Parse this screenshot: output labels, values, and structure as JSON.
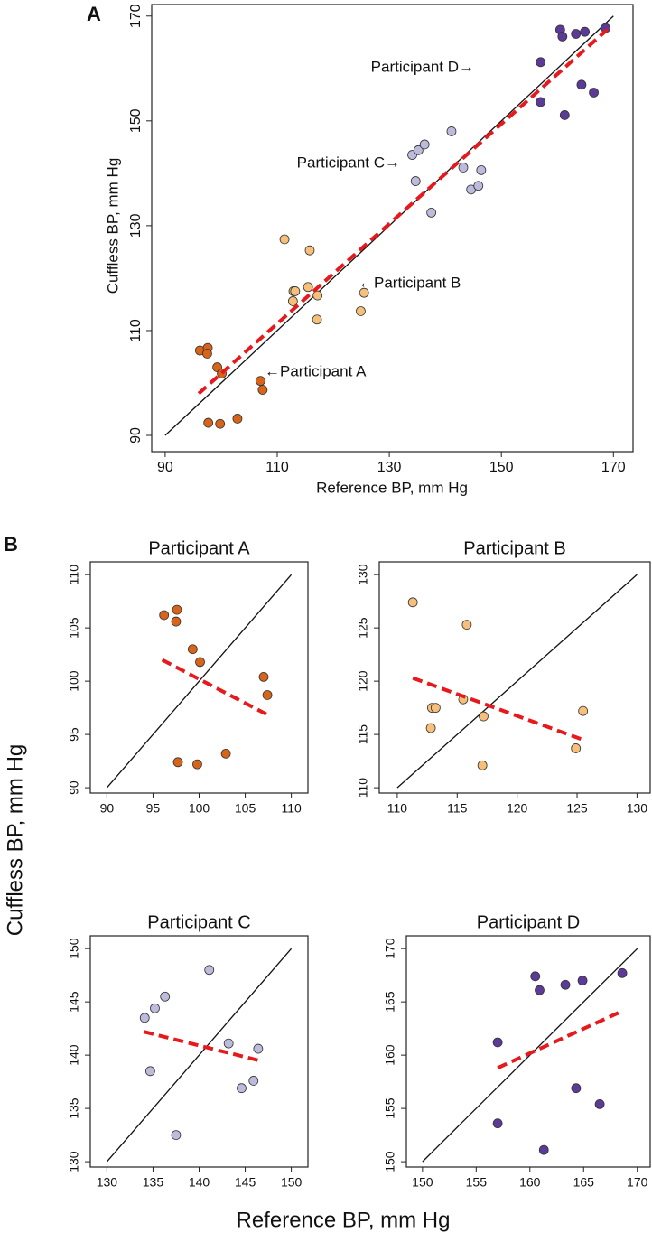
{
  "panel_b": {
    "label": "B",
    "x_label": "Reference BP, mm Hg",
    "y_label": "Cuffless BP, mm Hg"
  },
  "chart_data": [
    {
      "type": "scatter",
      "panel": "A",
      "x_label": "Reference BP, mm Hg",
      "y_label": "Cuffless BP, mm Hg",
      "xlim": [
        87.6,
        173.5
      ],
      "ylim": [
        86.9,
        172.2
      ],
      "xticks": [
        90,
        110,
        130,
        150,
        170
      ],
      "yticks": [
        90,
        110,
        130,
        150,
        170
      ],
      "annotations": [
        "Participant D→",
        "Participant C→",
        "←Participant B",
        "←Participant A"
      ],
      "identity": {
        "x": [
          90,
          170
        ],
        "y": [
          90,
          170
        ]
      },
      "fit": {
        "x": [
          96,
          169
        ],
        "y": [
          98,
          167.5
        ],
        "color": "#e8191c"
      },
      "series": [
        {
          "color": "#d8641a",
          "x": [
            96.2,
            97.6,
            97.5,
            99.3,
            100.1,
            107,
            107.4,
            97.7,
            99.8,
            102.9
          ],
          "values": [
            106.2,
            106.7,
            105.6,
            103,
            101.8,
            100.4,
            98.7,
            92.4,
            92.2,
            93.2
          ]
        },
        {
          "color": "#f6c07a",
          "x": [
            111.3,
            115.8,
            112.9,
            113.2,
            112.8,
            115.5,
            117.2,
            117.1,
            124.9,
            125.5
          ],
          "values": [
            127.4,
            125.3,
            117.5,
            117.5,
            115.6,
            118.3,
            116.7,
            112.1,
            113.7,
            117.2
          ]
        },
        {
          "color": "#bdbbdc",
          "x": [
            134.1,
            135.2,
            136.3,
            141.1,
            134.7,
            137.5,
            143.2,
            146.4,
            144.6,
            145.9
          ],
          "values": [
            143.5,
            144.4,
            145.5,
            148,
            138.5,
            132.5,
            141.1,
            140.6,
            136.9,
            137.6
          ]
        },
        {
          "color": "#5b3a98",
          "x": [
            160.5,
            160.9,
            163.3,
            164.9,
            168.6,
            157,
            157,
            164.3,
            166.5,
            161.3
          ],
          "values": [
            167.4,
            166.1,
            166.6,
            167,
            167.7,
            161.2,
            153.6,
            156.9,
            155.4,
            151.1
          ]
        }
      ]
    },
    {
      "type": "scatter",
      "title": "Participant A",
      "xlim": [
        88.2,
        111.8
      ],
      "ylim": [
        89.5,
        111.2
      ],
      "xticks": [
        90,
        95,
        100,
        105,
        110
      ],
      "yticks": [
        90,
        95,
        100,
        105,
        110
      ],
      "identity": {
        "x": [
          90,
          110
        ],
        "y": [
          90,
          110
        ]
      },
      "fit": {
        "x": [
          96,
          107.3
        ],
        "y": [
          102,
          96.9
        ],
        "color": "#e8191c"
      },
      "series": [
        {
          "color": "#d8641a",
          "x": [
            96.2,
            97.6,
            97.5,
            99.3,
            100.1,
            107,
            107.4,
            97.7,
            99.8,
            102.9
          ],
          "values": [
            106.2,
            106.7,
            105.6,
            103,
            101.8,
            100.4,
            98.7,
            92.4,
            92.2,
            93.2
          ]
        }
      ]
    },
    {
      "type": "scatter",
      "title": "Participant B",
      "xlim": [
        108.5,
        131.1
      ],
      "ylim": [
        109.5,
        131.2
      ],
      "xticks": [
        110,
        115,
        120,
        125,
        130
      ],
      "yticks": [
        110,
        115,
        120,
        125,
        130
      ],
      "identity": {
        "x": [
          110,
          130
        ],
        "y": [
          110,
          130
        ]
      },
      "fit": {
        "x": [
          111.3,
          125.5
        ],
        "y": [
          120.3,
          114.5
        ],
        "color": "#e8191c"
      },
      "series": [
        {
          "color": "#f6c07a",
          "x": [
            111.3,
            115.8,
            112.9,
            113.2,
            112.8,
            115.5,
            117.2,
            117.1,
            124.9,
            125.5
          ],
          "values": [
            127.4,
            125.3,
            117.5,
            117.5,
            115.6,
            118.3,
            116.7,
            112.1,
            113.7,
            117.2
          ]
        }
      ]
    },
    {
      "type": "scatter",
      "title": "Participant C",
      "xlim": [
        128.2,
        151.8
      ],
      "ylim": [
        129.5,
        151.2
      ],
      "xticks": [
        130,
        135,
        140,
        145,
        150
      ],
      "yticks": [
        130,
        135,
        140,
        145,
        150
      ],
      "identity": {
        "x": [
          130,
          150
        ],
        "y": [
          130,
          150
        ]
      },
      "fit": {
        "x": [
          134,
          146.5
        ],
        "y": [
          142.2,
          139.5
        ],
        "color": "#e8191c"
      },
      "series": [
        {
          "color": "#bdbbdc",
          "x": [
            134.1,
            135.2,
            136.3,
            141.1,
            134.7,
            137.5,
            143.2,
            146.4,
            144.6,
            145.9
          ],
          "values": [
            143.5,
            144.4,
            145.5,
            148,
            138.5,
            132.5,
            141.1,
            140.6,
            136.9,
            137.6
          ]
        }
      ]
    },
    {
      "type": "scatter",
      "title": "Participant D",
      "xlim": [
        148.5,
        171.2
      ],
      "ylim": [
        149.5,
        171.2
      ],
      "xticks": [
        150,
        155,
        160,
        165,
        170
      ],
      "yticks": [
        150,
        155,
        160,
        165,
        170
      ],
      "identity": {
        "x": [
          150,
          170
        ],
        "y": [
          150,
          170
        ]
      },
      "fit": {
        "x": [
          157,
          168.3
        ],
        "y": [
          158.8,
          164
        ],
        "color": "#e8191c"
      },
      "series": [
        {
          "color": "#5b3a98",
          "x": [
            160.5,
            160.9,
            163.3,
            164.9,
            168.6,
            157,
            157,
            164.3,
            166.5,
            161.3
          ],
          "values": [
            167.4,
            166.1,
            166.6,
            167,
            167.7,
            161.2,
            153.6,
            156.9,
            155.4,
            151.1
          ]
        }
      ]
    }
  ]
}
